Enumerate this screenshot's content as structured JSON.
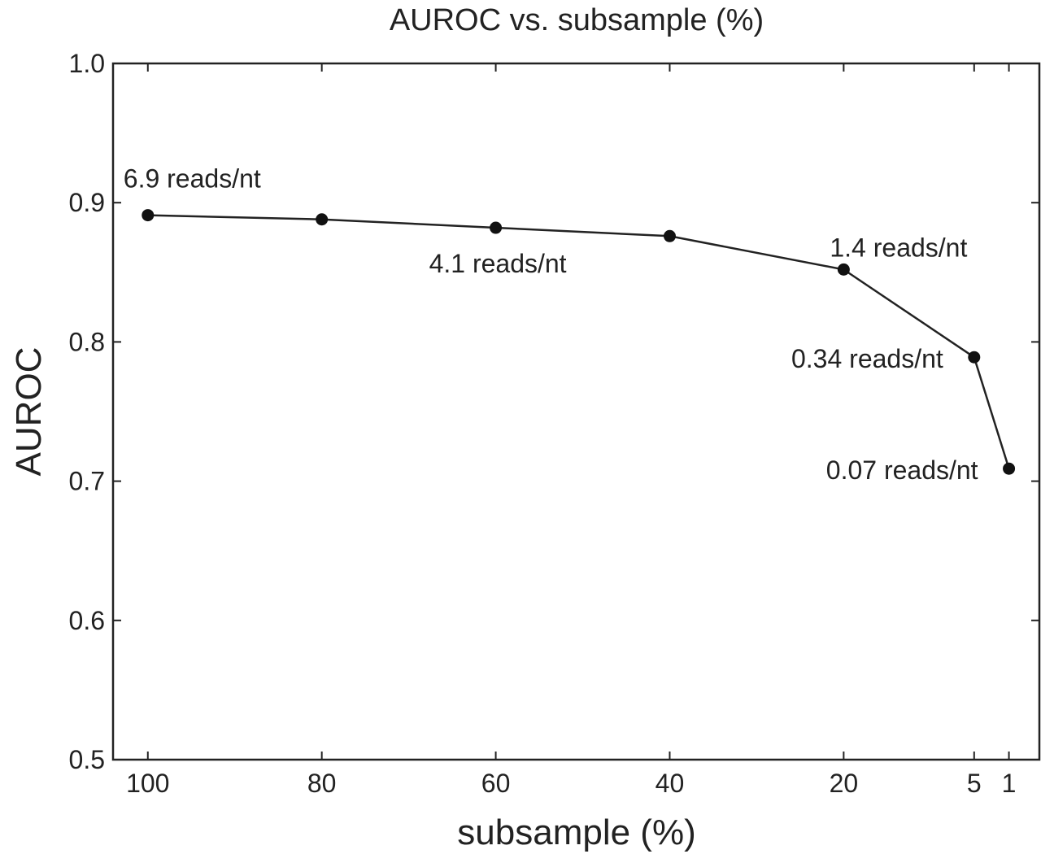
{
  "chart_data": {
    "type": "line",
    "title": "AUROC vs. subsample (%)",
    "xlabel": "subsample (%)",
    "ylabel": "AUROC",
    "x_reversed": true,
    "xlim": [
      104,
      -2.5
    ],
    "ylim": [
      0.5,
      1.0
    ],
    "x_ticks": [
      100,
      80,
      60,
      40,
      20,
      5,
      1
    ],
    "x_tick_labels": [
      "100",
      "80",
      "60",
      "40",
      "20",
      "5",
      "1"
    ],
    "y_ticks": [
      0.5,
      0.6,
      0.7,
      0.8,
      0.9,
      1.0
    ],
    "y_tick_labels": [
      "0.5",
      "0.6",
      "0.7",
      "0.8",
      "0.9",
      "1.0"
    ],
    "grid": false,
    "series": [
      {
        "x": [
          100,
          80,
          60,
          40,
          20,
          5,
          1
        ],
        "values": [
          0.891,
          0.888,
          0.882,
          0.876,
          0.852,
          0.789,
          0.709
        ],
        "color": "#111111",
        "marker": "circle"
      }
    ],
    "annotations": [
      {
        "text": "6.9 reads/nt",
        "x": 100,
        "y": 0.891,
        "position": "above"
      },
      {
        "text": "4.1 reads/nt",
        "x": 60,
        "y": 0.882,
        "position": "below"
      },
      {
        "text": "1.4 reads/nt",
        "x": 20,
        "y": 0.852,
        "position": "above-right"
      },
      {
        "text": "0.34 reads/nt",
        "x": 5,
        "y": 0.789,
        "position": "left"
      },
      {
        "text": "0.07 reads/nt",
        "x": 1,
        "y": 0.709,
        "position": "left"
      }
    ]
  }
}
